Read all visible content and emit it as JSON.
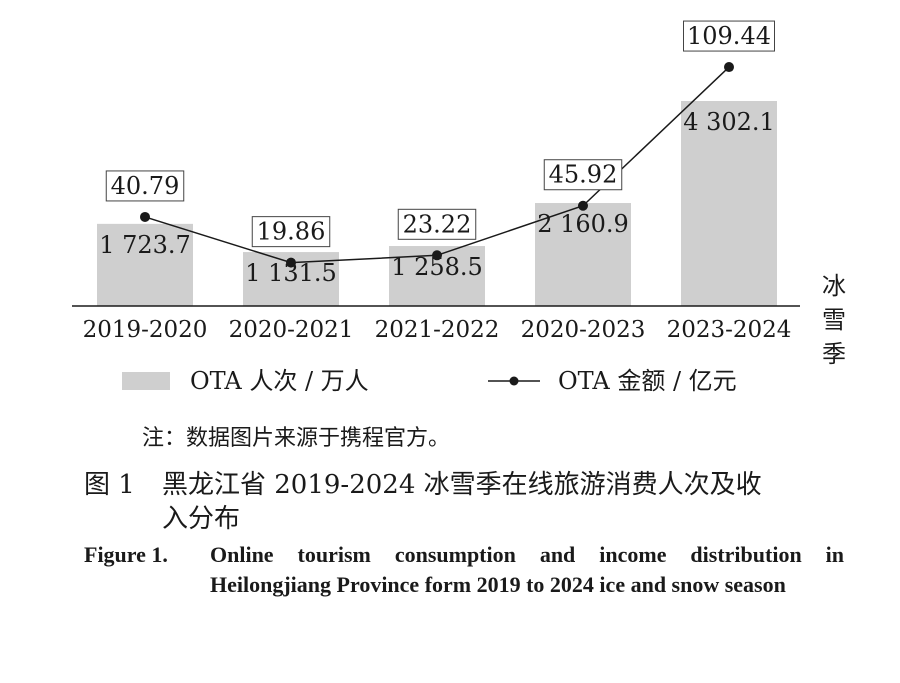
{
  "chart_data": {
    "type": "bar",
    "categories": [
      "2019-2020",
      "2020-2021",
      "2021-2022",
      "2020-2023",
      "2023-2024"
    ],
    "series": [
      {
        "name": "OTA 人次 / 万人",
        "type": "bar",
        "values": [
          1723.7,
          1131.5,
          1258.5,
          2160.9,
          4302.1
        ],
        "labels": [
          "1 723.7",
          "1 131.5",
          "1 258.5",
          "2 160.9",
          "4 302.1"
        ]
      },
      {
        "name": "OTA 金额 / 亿元",
        "type": "line",
        "values": [
          40.79,
          19.86,
          23.22,
          45.92,
          109.44
        ],
        "labels": [
          "40.79",
          "19.86",
          "23.22",
          "45.92",
          "109.44"
        ]
      }
    ],
    "xlabel": "冰雪季",
    "bar_ylim": [
      0,
      4302.1
    ],
    "line_ylim": [
      0,
      120
    ],
    "grid": false,
    "legend_position": "bottom",
    "colors": {
      "bar": "#cfcfcf",
      "line": "#1a1a1a",
      "marker": "#1a1a1a"
    }
  },
  "note": "注：数据图片来源于携程官方。",
  "caption_cn": {
    "label": "图 1",
    "line1": "黑龙江省 2019-2024 冰雪季在线旅游消费人次及收",
    "line2": "入分布"
  },
  "caption_en": {
    "label": "Figure 1.",
    "text": "Online tourism consumption and income distribution in Heilongjiang Province form 2019 to 2024 ice and snow season"
  }
}
